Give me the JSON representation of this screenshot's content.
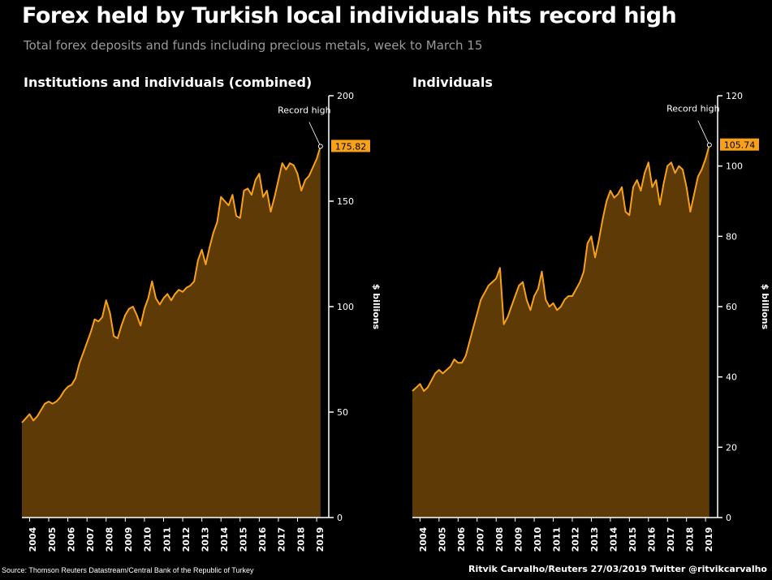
{
  "title": "Forex held by Turkish local individuals hits record high",
  "subtitle": "Total forex deposits and funds including precious metals, week to March 15",
  "source": "Source: Thomson Reuters Datastream/Central Bank of the Republic of Turkey",
  "credit": "Ritvik Carvalho/Reuters 27/03/2019 Twitter @ritvikcarvalho",
  "colors": {
    "line": "#f7a11a",
    "fill": "#5e3a06",
    "axis": "#ffffff",
    "label_bg": "#f7a11a"
  },
  "chart_data": [
    {
      "type": "area",
      "title": "Institutions and individuals (combined)",
      "ylabel": "$ billions",
      "ylim": [
        0,
        200
      ],
      "yticks": [
        0,
        50,
        100,
        150,
        200
      ],
      "xlim": [
        2003.6,
        2019.25
      ],
      "xtick_labels": [
        "2004",
        "2005",
        "2006",
        "2007",
        "2008",
        "2009",
        "2010",
        "2011",
        "2012",
        "2013",
        "2014",
        "2015",
        "2016",
        "2017",
        "2018",
        "2019"
      ],
      "annotation": "Record high",
      "last_value_label": "175.82",
      "x": [
        2003.6,
        2003.8,
        2004.0,
        2004.2,
        2004.4,
        2004.6,
        2004.8,
        2005.0,
        2005.2,
        2005.4,
        2005.6,
        2005.8,
        2006.0,
        2006.2,
        2006.4,
        2006.6,
        2006.8,
        2007.0,
        2007.2,
        2007.4,
        2007.6,
        2007.8,
        2008.0,
        2008.2,
        2008.4,
        2008.6,
        2008.8,
        2009.0,
        2009.2,
        2009.4,
        2009.6,
        2009.8,
        2010.0,
        2010.2,
        2010.4,
        2010.6,
        2010.8,
        2011.0,
        2011.2,
        2011.4,
        2011.6,
        2011.8,
        2012.0,
        2012.2,
        2012.4,
        2012.6,
        2012.8,
        2013.0,
        2013.2,
        2013.4,
        2013.6,
        2013.8,
        2014.0,
        2014.2,
        2014.4,
        2014.6,
        2014.8,
        2015.0,
        2015.2,
        2015.4,
        2015.6,
        2015.8,
        2016.0,
        2016.2,
        2016.4,
        2016.6,
        2016.8,
        2017.0,
        2017.2,
        2017.4,
        2017.6,
        2017.8,
        2018.0,
        2018.2,
        2018.4,
        2018.6,
        2018.8,
        2019.0,
        2019.2
      ],
      "values": [
        45,
        47,
        49,
        46,
        48,
        51,
        54,
        55,
        54,
        55,
        57,
        60,
        62,
        63,
        66,
        73,
        78,
        83,
        88,
        94,
        93,
        95,
        103,
        97,
        86,
        85,
        91,
        96,
        99,
        100,
        96,
        91,
        99,
        104,
        112,
        104,
        101,
        104,
        106,
        103,
        106,
        108,
        107,
        109,
        110,
        112,
        122,
        127,
        120,
        128,
        135,
        140,
        152,
        150,
        148,
        153,
        143,
        142,
        155,
        156,
        153,
        160,
        163,
        152,
        155,
        145,
        152,
        160,
        168,
        165,
        168,
        167,
        163,
        155,
        160,
        162,
        166,
        170,
        176
      ]
    },
    {
      "type": "area",
      "title": "Individuals",
      "ylabel": "$ billions",
      "ylim": [
        0,
        120
      ],
      "yticks": [
        0,
        20,
        40,
        60,
        80,
        100,
        120
      ],
      "xlim": [
        2003.6,
        2019.25
      ],
      "xtick_labels": [
        "2004",
        "2005",
        "2006",
        "2007",
        "2008",
        "2009",
        "2010",
        "2011",
        "2012",
        "2013",
        "2014",
        "2015",
        "2016",
        "2017",
        "2018",
        "2019"
      ],
      "annotation": "Record high",
      "last_value_label": "105.74",
      "x": [
        2003.6,
        2003.8,
        2004.0,
        2004.2,
        2004.4,
        2004.6,
        2004.8,
        2005.0,
        2005.2,
        2005.4,
        2005.6,
        2005.8,
        2006.0,
        2006.2,
        2006.4,
        2006.6,
        2006.8,
        2007.0,
        2007.2,
        2007.4,
        2007.6,
        2007.8,
        2008.0,
        2008.2,
        2008.4,
        2008.6,
        2008.8,
        2009.0,
        2009.2,
        2009.4,
        2009.6,
        2009.8,
        2010.0,
        2010.2,
        2010.4,
        2010.6,
        2010.8,
        2011.0,
        2011.2,
        2011.4,
        2011.6,
        2011.8,
        2012.0,
        2012.2,
        2012.4,
        2012.6,
        2012.8,
        2013.0,
        2013.2,
        2013.4,
        2013.6,
        2013.8,
        2014.0,
        2014.2,
        2014.4,
        2014.6,
        2014.8,
        2015.0,
        2015.2,
        2015.4,
        2015.6,
        2015.8,
        2016.0,
        2016.2,
        2016.4,
        2016.6,
        2016.8,
        2017.0,
        2017.2,
        2017.4,
        2017.6,
        2017.8,
        2018.0,
        2018.2,
        2018.4,
        2018.6,
        2018.8,
        2019.0,
        2019.2
      ],
      "values": [
        36,
        37,
        38,
        36,
        37,
        39,
        41,
        42,
        41,
        42,
        43,
        45,
        44,
        44,
        46,
        50,
        54,
        58,
        62,
        64,
        66,
        67,
        68,
        71,
        55,
        57,
        60,
        63,
        66,
        67,
        62,
        59,
        63,
        65,
        70,
        62,
        60,
        61,
        59,
        60,
        62,
        63,
        63,
        65,
        67,
        70,
        78,
        80,
        74,
        79,
        85,
        90,
        93,
        91,
        92,
        94,
        87,
        86,
        94,
        96,
        93,
        98,
        101,
        94,
        96,
        89,
        95,
        100,
        101,
        98,
        100,
        99,
        94,
        87,
        92,
        97,
        99,
        102,
        106
      ]
    }
  ]
}
